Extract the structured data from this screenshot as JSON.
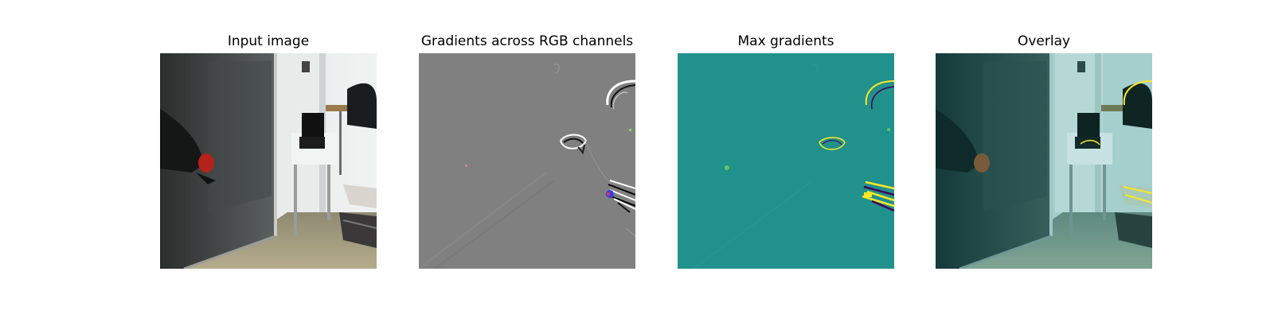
{
  "panels": [
    {
      "title": "Input image",
      "icon": "room-photo-image"
    },
    {
      "title": "Gradients across RGB channels",
      "icon": "rgb-gradient-map-image"
    },
    {
      "title": "Max gradients",
      "icon": "max-gradient-heatmap-image"
    },
    {
      "title": "Overlay",
      "icon": "overlay-heatmap-image"
    }
  ],
  "colors": {
    "background": "#ffffff",
    "gradient_gray": "#808080",
    "viridis_teal": "#21918c",
    "viridis_yellow": "#fde725",
    "viridis_purple": "#440154"
  }
}
